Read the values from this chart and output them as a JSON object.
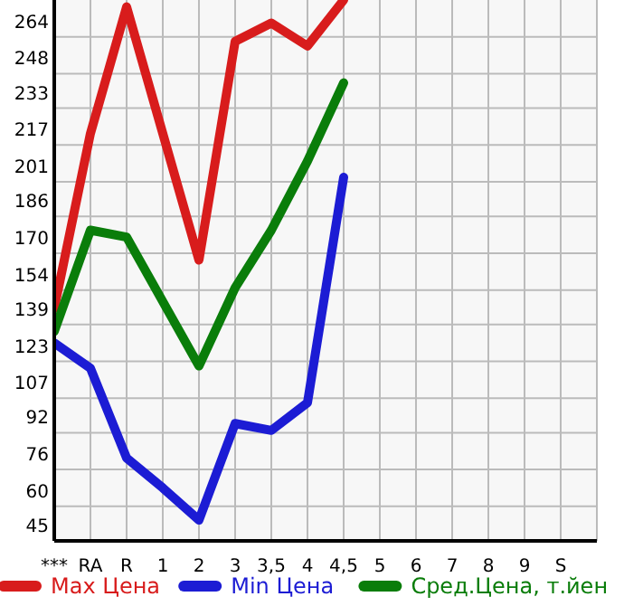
{
  "chart_data": {
    "type": "line",
    "categories": [
      "***",
      "RA",
      "R",
      "1",
      "2",
      "3",
      "3,5",
      "4",
      "4,5",
      "5",
      "6",
      "7",
      "8",
      "9",
      "S"
    ],
    "series": [
      {
        "name": "Max Цена",
        "color": "#d81c1c",
        "values": [
          146,
          222,
          277,
          222,
          167,
          262,
          270,
          260,
          280,
          null,
          null,
          null,
          null,
          null,
          null
        ]
      },
      {
        "name": "Min Цена",
        "color": "#1c1cd4",
        "values": [
          131,
          120,
          81,
          68,
          54,
          96,
          93,
          105,
          203,
          null,
          null,
          null,
          null,
          null,
          null
        ]
      },
      {
        "name": "Сред.Цена, т.йен",
        "color": "#0a7d0a",
        "values": [
          136,
          180,
          177,
          149,
          121,
          155,
          180,
          210,
          244,
          null,
          null,
          null,
          null,
          null,
          null
        ]
      }
    ],
    "ylim": [
      45,
      280
    ],
    "yticks": [
      45,
      60,
      76,
      92,
      107,
      123,
      139,
      154,
      170,
      186,
      201,
      217,
      233,
      248,
      264
    ],
    "grid": true,
    "legend": "bottom",
    "marker": "none",
    "line_style": "solid"
  }
}
